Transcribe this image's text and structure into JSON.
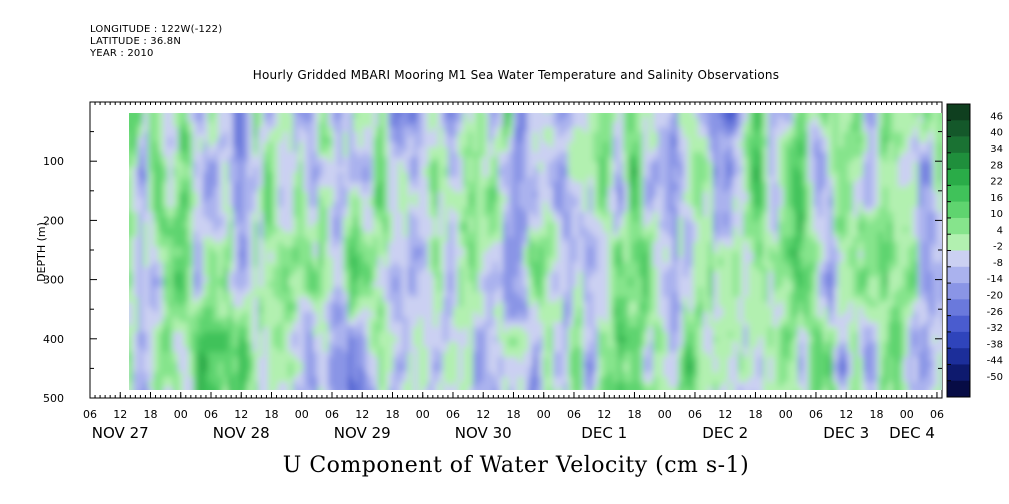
{
  "header": {
    "longitude": "LONGITUDE : 122W(-122)",
    "latitude": "LATITUDE : 36.8N",
    "year": "YEAR : 2010"
  },
  "chart_data": {
    "type": "heatmap",
    "title": "U Component of Water Velocity (cm s-1)",
    "subtitle": "Hourly Gridded MBARI Mooring M1 Sea Water Temperature and Salinity Observations",
    "ylabel": "DEPTH (m)",
    "xlabel": "",
    "y_axis": {
      "range": [
        500,
        0
      ],
      "inverted": true,
      "ticks": [
        100,
        200,
        300,
        400,
        500
      ],
      "data_extent": [
        20,
        490
      ]
    },
    "x_axis": {
      "range_hours": [
        0,
        169
      ],
      "hour_labels": [
        "06",
        "12",
        "18",
        "00",
        "06",
        "12",
        "18",
        "00",
        "06",
        "12",
        "18",
        "00",
        "06",
        "12",
        "18",
        "00",
        "06",
        "12",
        "18",
        "00",
        "06",
        "12",
        "18",
        "00",
        "06",
        "12",
        "18",
        "00",
        "06"
      ],
      "date_labels": [
        "NOV 27",
        "NOV 28",
        "NOV 29",
        "NOV 30",
        "DEC  1",
        "DEC  2",
        "DEC  3",
        "DEC  4"
      ],
      "data_start_hour": 12
    },
    "colorbar": {
      "labels": [
        "46",
        "40",
        "34",
        "28",
        "22",
        "16",
        "10",
        "4",
        "-2",
        "-8",
        "-14",
        "-20",
        "-26",
        "-32",
        "-38",
        "-44",
        "-50"
      ],
      "colors": [
        "#0f3f1f",
        "#14582a",
        "#1a7233",
        "#1f8f3c",
        "#2aac48",
        "#40c25a",
        "#5fd46f",
        "#86e48c",
        "#b2f0b0",
        "#cbd0f2",
        "#aab2ee",
        "#8a95e6",
        "#6a79dc",
        "#4a5ccf",
        "#2f44bb",
        "#1c2e9a",
        "#0e1a6e",
        "#070c45"
      ],
      "range": [
        -50,
        52
      ]
    }
  }
}
